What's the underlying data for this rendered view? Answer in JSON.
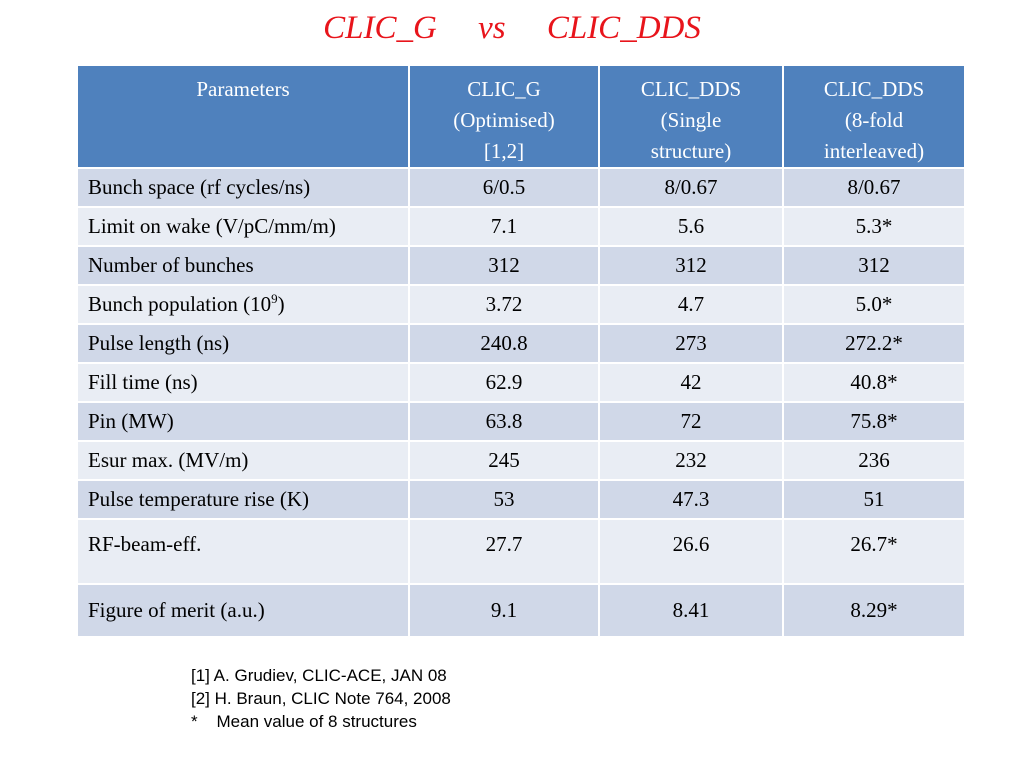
{
  "title": "CLIC_G     vs     CLIC_DDS",
  "table": {
    "headers": [
      [
        "Parameters"
      ],
      [
        "CLIC_G",
        "(Optimised)",
        "[1,2]"
      ],
      [
        "CLIC_DDS",
        "(Single",
        "structure)"
      ],
      [
        "CLIC_DDS",
        "(8-fold",
        "interleaved)"
      ]
    ],
    "rows": [
      {
        "label": "Bunch space (rf cycles/ns)",
        "values": [
          "6/0.5",
          "8/0.67",
          "8/0.67"
        ]
      },
      {
        "label": "Limit on wake (V/pC/mm/m)",
        "values": [
          "7.1",
          "5.6",
          "5.3*"
        ]
      },
      {
        "label": "Number of bunches",
        "values": [
          "312",
          "312",
          "312"
        ]
      },
      {
        "label": "Bunch population (10",
        "label_sup": "9",
        "label_suffix": ")",
        "values": [
          "3.72",
          "4.7",
          "5.0*"
        ]
      },
      {
        "label": "Pulse length (ns)",
        "values": [
          "240.8",
          "273",
          "272.2*"
        ]
      },
      {
        "label": "Fill time (ns)",
        "values": [
          "62.9",
          "42",
          "40.8*"
        ]
      },
      {
        "label": "Pin (MW)",
        "values": [
          "63.8",
          "72",
          "75.8*"
        ]
      },
      {
        "label": "Esur max. (MV/m)",
        "values": [
          "245",
          "232",
          "236"
        ]
      },
      {
        "label": "Pulse temperature rise (K)",
        "values": [
          "53",
          "47.3",
          "51"
        ]
      },
      {
        "label": "RF-beam-eff.",
        "values": [
          "27.7",
          "26.6",
          "26.7*"
        ]
      },
      {
        "label": "Figure of merit (a.u.)",
        "values": [
          "9.1",
          "8.41",
          "8.29*"
        ]
      }
    ]
  },
  "notes": [
    "[1] A. Grudiev, CLIC-ACE, JAN 08",
    "[2] H. Braun, CLIC Note 764, 2008",
    "*    Mean value of 8 structures"
  ]
}
